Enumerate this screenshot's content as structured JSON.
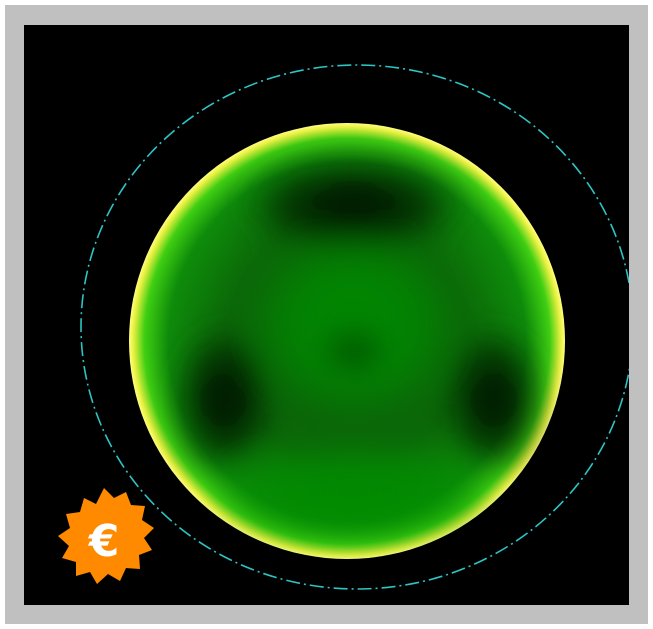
{
  "viewer": {
    "background_color": "#000000",
    "frame_color": "#c0c0c0",
    "guide_circle_color": "#2ec4c4",
    "map_colors": {
      "bright": "#00c000",
      "dark": "#001200",
      "edge": "#ffff66"
    }
  },
  "badge": {
    "icon": "gear-logo-icon",
    "glyph": "€",
    "fill_color": "#ff8a00",
    "glyph_color": "#ffffff"
  }
}
